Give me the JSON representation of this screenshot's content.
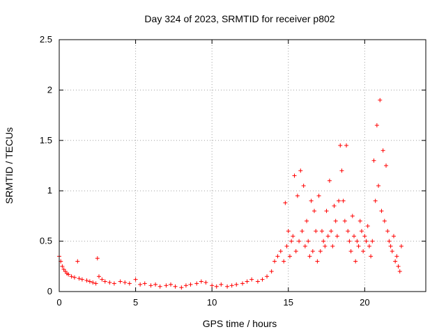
{
  "chart_data": {
    "type": "scatter",
    "title": "Day 324 of 2023, SRMTID for receiver p802",
    "xlabel": "GPS time / hours",
    "ylabel": "SRMTID / TECUs",
    "xlim": [
      0,
      24
    ],
    "ylim": [
      0,
      2.5
    ],
    "xticks": [
      0,
      5,
      10,
      15,
      20
    ],
    "xtick_labels": [
      "0",
      "5",
      "10",
      "15",
      "20"
    ],
    "yticks": [
      0,
      0.5,
      1,
      1.5,
      2,
      2.5
    ],
    "ytick_labels": [
      "0",
      "0.5",
      "1",
      "1.5",
      "2",
      "2.5"
    ],
    "grid": true,
    "marker": "plus",
    "color": "#ff0000",
    "series": [
      {
        "name": "SRMTID",
        "x": [
          0.0,
          0.1,
          0.2,
          0.3,
          0.4,
          0.5,
          0.6,
          0.8,
          1.0,
          1.2,
          1.3,
          1.5,
          1.8,
          2.0,
          2.2,
          2.4,
          2.5,
          2.6,
          2.8,
          3.0,
          3.3,
          3.6,
          4.0,
          4.3,
          4.6,
          5.0,
          5.3,
          5.6,
          6.0,
          6.3,
          6.6,
          7.0,
          7.3,
          7.6,
          8.0,
          8.3,
          8.6,
          9.0,
          9.3,
          9.6,
          10.0,
          10.3,
          10.6,
          11.0,
          11.3,
          11.6,
          12.0,
          12.3,
          12.6,
          13.0,
          13.3,
          13.6,
          13.9,
          14.1,
          14.3,
          14.5,
          14.7,
          14.8,
          14.9,
          15.0,
          15.1,
          15.2,
          15.3,
          15.4,
          15.5,
          15.6,
          15.7,
          15.8,
          15.9,
          16.0,
          16.1,
          16.2,
          16.3,
          16.4,
          16.5,
          16.6,
          16.7,
          16.8,
          16.9,
          17.0,
          17.1,
          17.2,
          17.3,
          17.4,
          17.5,
          17.6,
          17.7,
          17.8,
          17.9,
          18.0,
          18.1,
          18.2,
          18.3,
          18.4,
          18.5,
          18.6,
          18.7,
          18.8,
          18.9,
          19.0,
          19.1,
          19.2,
          19.3,
          19.4,
          19.5,
          19.6,
          19.7,
          19.8,
          19.9,
          20.0,
          20.1,
          20.2,
          20.3,
          20.4,
          20.5,
          20.6,
          20.7,
          20.8,
          20.9,
          21.0,
          21.1,
          21.2,
          21.3,
          21.4,
          21.5,
          21.6,
          21.7,
          21.8,
          21.9,
          22.0,
          22.1,
          22.2,
          22.3,
          22.4
        ],
        "y": [
          0.35,
          0.3,
          0.25,
          0.22,
          0.2,
          0.18,
          0.17,
          0.15,
          0.14,
          0.3,
          0.13,
          0.12,
          0.11,
          0.1,
          0.09,
          0.08,
          0.33,
          0.15,
          0.12,
          0.1,
          0.09,
          0.08,
          0.1,
          0.09,
          0.08,
          0.12,
          0.07,
          0.08,
          0.06,
          0.07,
          0.05,
          0.06,
          0.07,
          0.05,
          0.04,
          0.06,
          0.07,
          0.08,
          0.1,
          0.09,
          0.06,
          0.05,
          0.07,
          0.05,
          0.06,
          0.07,
          0.08,
          0.1,
          0.12,
          0.1,
          0.12,
          0.15,
          0.2,
          0.3,
          0.35,
          0.4,
          0.3,
          0.88,
          0.45,
          0.6,
          0.35,
          0.5,
          0.55,
          1.15,
          0.4,
          0.95,
          0.5,
          1.2,
          0.6,
          1.05,
          0.45,
          0.7,
          0.5,
          0.35,
          0.9,
          0.4,
          0.8,
          0.6,
          0.3,
          0.95,
          0.4,
          0.6,
          0.5,
          0.45,
          0.8,
          0.55,
          1.1,
          0.6,
          0.45,
          0.85,
          0.7,
          0.55,
          0.9,
          1.45,
          1.2,
          0.9,
          0.7,
          1.45,
          0.6,
          0.5,
          0.4,
          0.75,
          0.55,
          0.3,
          0.5,
          0.45,
          0.7,
          0.6,
          0.4,
          0.55,
          0.5,
          0.65,
          0.45,
          0.35,
          0.5,
          1.3,
          0.9,
          1.65,
          1.05,
          1.9,
          0.8,
          1.4,
          0.7,
          1.25,
          0.6,
          0.5,
          0.45,
          0.4,
          0.55,
          0.3,
          0.35,
          0.25,
          0.2,
          0.45
        ]
      }
    ]
  }
}
